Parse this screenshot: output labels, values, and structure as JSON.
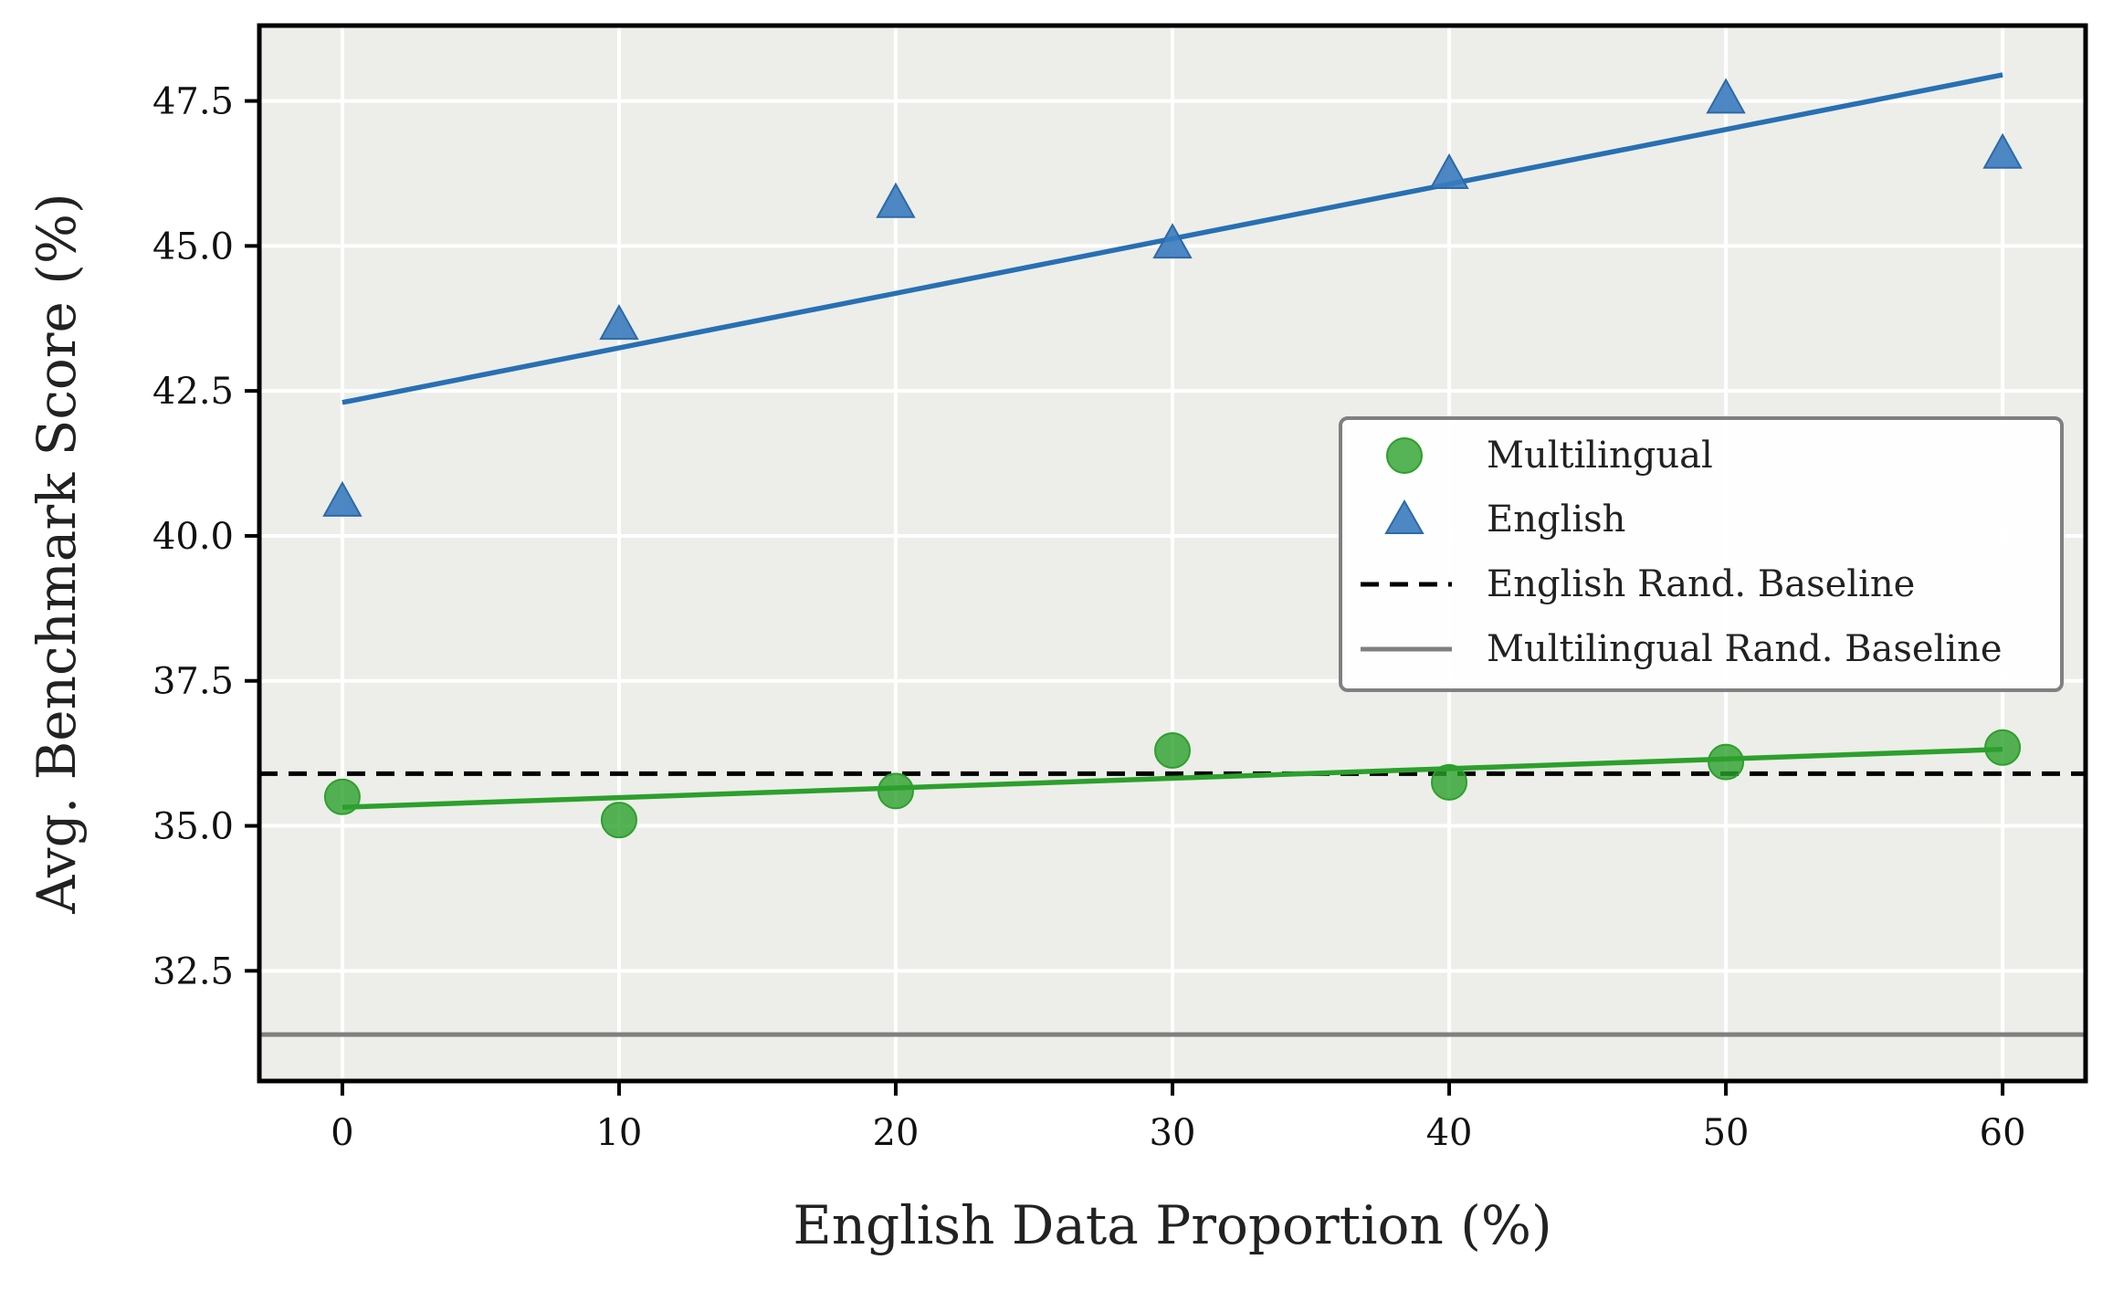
{
  "chart_data": {
    "type": "scatter",
    "xlabel": "English Data Proportion (%)",
    "ylabel": "Avg. Benchmark Score (%)",
    "xlim": [
      -3,
      63
    ],
    "ylim": [
      30.6,
      48.8
    ],
    "x_ticks": [
      0,
      10,
      20,
      30,
      40,
      50,
      60
    ],
    "x_tick_labels": [
      "0",
      "10",
      "20",
      "30",
      "40",
      "50",
      "60"
    ],
    "y_ticks": [
      32.5,
      35.0,
      37.5,
      40.0,
      42.5,
      45.0,
      47.5
    ],
    "y_tick_labels": [
      "32.5",
      "35.0",
      "37.5",
      "40.0",
      "42.5",
      "45.0",
      "47.5"
    ],
    "grid": true,
    "legend_position": "center-right",
    "series": [
      {
        "name": "Multilingual",
        "marker": "circle",
        "color": "#2ca02c",
        "x": [
          0,
          10,
          20,
          30,
          40,
          50,
          60
        ],
        "y": [
          35.5,
          35.1,
          35.6,
          36.3,
          35.75,
          36.1,
          36.35
        ],
        "fit": [
          [
            0,
            35.32
          ],
          [
            60,
            36.32
          ]
        ]
      },
      {
        "name": "English",
        "marker": "triangle",
        "color": "#3a7bbf",
        "x": [
          0,
          10,
          20,
          30,
          40,
          50,
          60
        ],
        "y": [
          40.6,
          43.65,
          45.75,
          45.05,
          46.25,
          47.55,
          46.6
        ],
        "fit": [
          [
            0,
            42.3
          ],
          [
            60,
            47.95
          ]
        ]
      }
    ],
    "reference_lines": [
      {
        "name": "English Rand. Baseline",
        "y": 35.9,
        "style": "dashed",
        "color": "#000000"
      },
      {
        "name": "Multilingual Rand. Baseline",
        "y": 31.4,
        "style": "solid",
        "color": "#808080"
      }
    ],
    "legend": [
      "Multilingual",
      "English",
      "English Rand. Baseline",
      "Multilingual Rand. Baseline"
    ]
  }
}
